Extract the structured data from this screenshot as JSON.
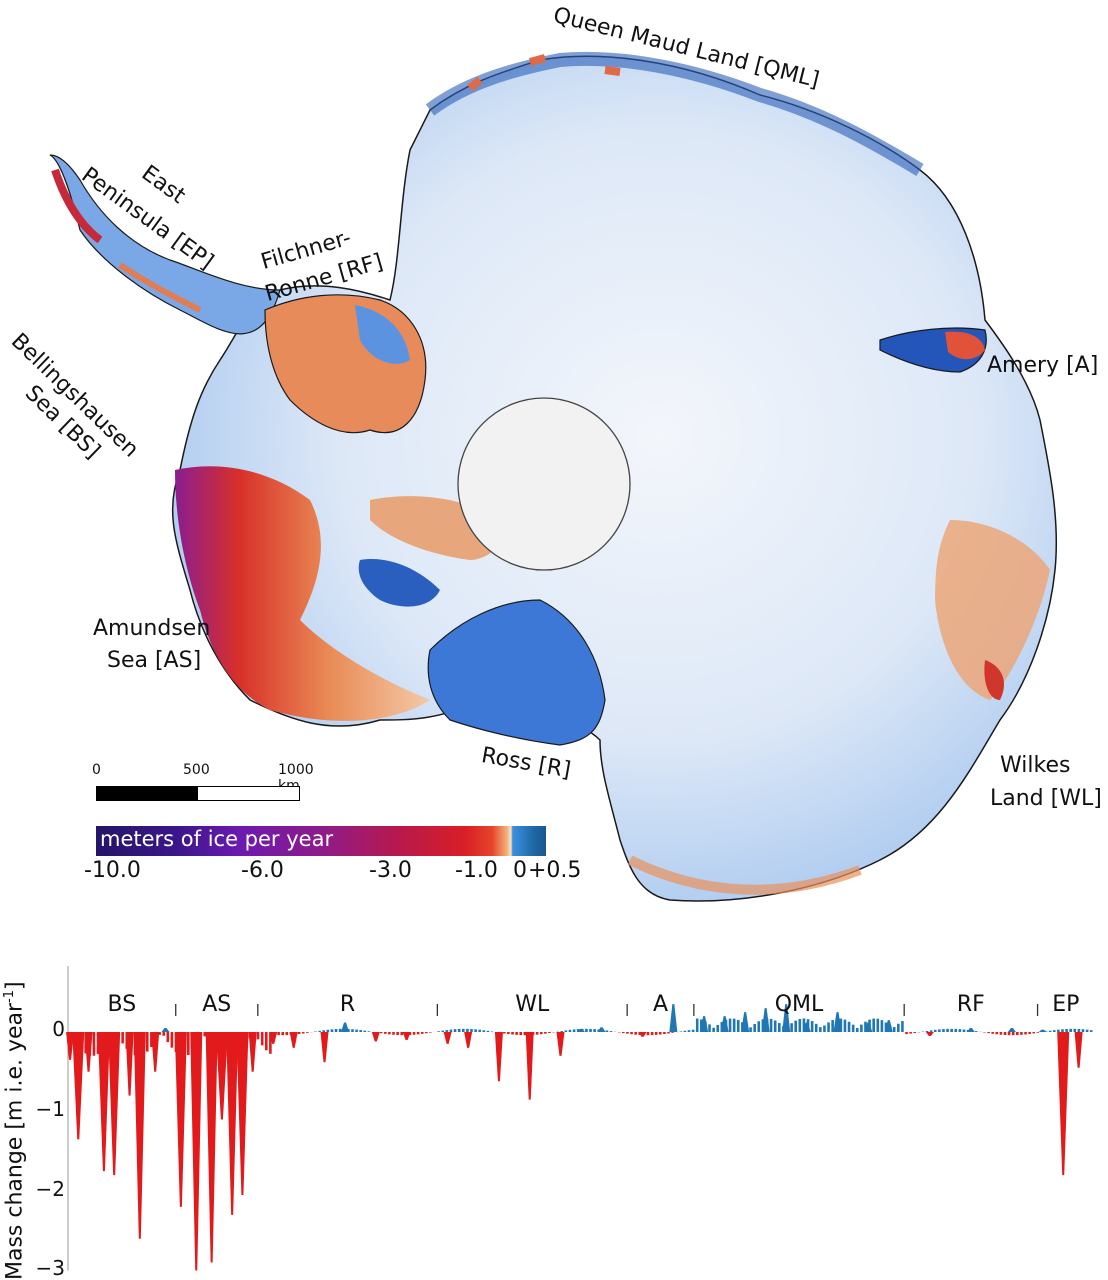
{
  "map": {
    "labels": {
      "qml": "Queen Maud Land [QML]",
      "ep_line1": "East",
      "ep_line2": "Peninsula [EP]",
      "rf_line1": "Filchner-",
      "rf_line2": "Ronne [RF]",
      "bs_line1": "Bellingshausen",
      "bs_line2": "Sea [BS]",
      "amery": "Amery [A]",
      "as_line1": "Amundsen",
      "as_line2": "Sea [AS]",
      "ross": "Ross [R]",
      "wl_line1": "Wilkes",
      "wl_line2": "Land [WL]"
    },
    "scale_bar": {
      "ticks": [
        "0",
        "500",
        "1000 km"
      ]
    },
    "colorbar": {
      "title": "meters of ice per year",
      "ticks": [
        "-10.0",
        "-6.0",
        "-3.0",
        "-1.0",
        "0",
        "+0.5"
      ],
      "colors": {
        "min": "#241566",
        "mid": "#8e1b8a",
        "neg": "#d81f26",
        "zero": "#fbe3c0",
        "pos": "#1f6aa8"
      }
    }
  },
  "chart_data": {
    "type": "area",
    "title": "",
    "xlabel": "",
    "ylabel": "Mass change [m i.e. year",
    "ylabel_sup": "-1",
    "ylabel_close": "]",
    "ylim": [
      -3,
      0.5
    ],
    "yticks": [
      "0",
      "−1",
      "−2",
      "−3"
    ],
    "colors": {
      "positive": "#1f77b4",
      "negative": "#e31a1c"
    },
    "grid": false,
    "segments": [
      {
        "label": "BS",
        "x_start": 0.0,
        "x_end": 0.105
      },
      {
        "label": "AS",
        "x_start": 0.105,
        "x_end": 0.185
      },
      {
        "label": "R",
        "x_start": 0.185,
        "x_end": 0.36
      },
      {
        "label": "WL",
        "x_start": 0.36,
        "x_end": 0.545
      },
      {
        "label": "A",
        "x_start": 0.545,
        "x_end": 0.61
      },
      {
        "label": "QML",
        "x_start": 0.61,
        "x_end": 0.815
      },
      {
        "label": "RF",
        "x_start": 0.815,
        "x_end": 0.945
      },
      {
        "label": "EP",
        "x_start": 0.945,
        "x_end": 1.0
      }
    ],
    "series": [
      {
        "name": "peaks",
        "x": [
          0.002,
          0.01,
          0.02,
          0.035,
          0.045,
          0.06,
          0.07,
          0.085,
          0.095,
          0.11,
          0.125,
          0.14,
          0.15,
          0.16,
          0.17,
          0.18,
          0.2,
          0.22,
          0.25,
          0.27,
          0.3,
          0.33,
          0.37,
          0.39,
          0.42,
          0.45,
          0.48,
          0.5,
          0.52,
          0.56,
          0.59,
          0.62,
          0.64,
          0.66,
          0.68,
          0.7,
          0.72,
          0.75,
          0.78,
          0.8,
          0.84,
          0.88,
          0.92,
          0.95,
          0.97,
          0.985
        ],
        "values": [
          -0.35,
          -1.35,
          -0.5,
          -1.75,
          -1.8,
          -0.8,
          -2.6,
          -0.5,
          0.05,
          -2.2,
          -3.0,
          -2.9,
          -1.1,
          -2.3,
          -2.05,
          -0.5,
          -0.15,
          -0.2,
          -0.38,
          0.12,
          -0.12,
          -0.1,
          -0.15,
          -0.2,
          -0.62,
          -0.85,
          -0.3,
          0.04,
          0.06,
          -0.06,
          0.35,
          0.2,
          0.2,
          0.25,
          0.3,
          0.35,
          0.12,
          0.25,
          0.12,
          0.15,
          -0.05,
          0.05,
          0.05,
          0.03,
          -1.8,
          -0.45
        ]
      }
    ]
  }
}
